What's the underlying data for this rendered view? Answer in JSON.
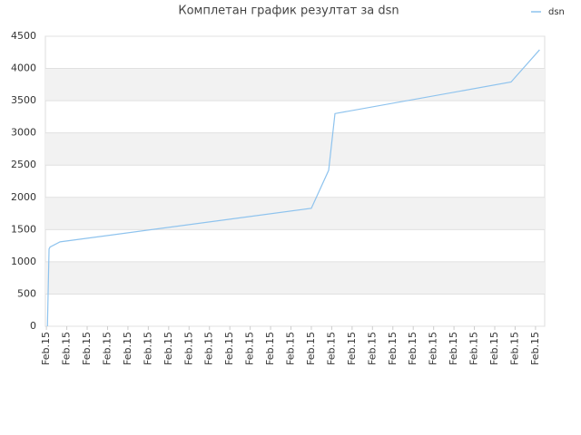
{
  "chart_data": {
    "type": "line",
    "title": "Комплетан график резултат за dsn",
    "x": [
      0.05,
      0.07,
      0.11,
      0.13,
      0.18,
      0.67,
      13.0,
      13.85,
      14.16,
      22.8,
      24.2
    ],
    "series": [
      {
        "name": "dsn",
        "color": "#8ec3ee",
        "values": [
          0,
          300,
          900,
          1200,
          1230,
          1310,
          1830,
          2420,
          3300,
          3790,
          4290
        ]
      }
    ],
    "xlim": [
      -0.05,
      24.45
    ],
    "xticks": [
      {
        "value": 0,
        "label": "Feb.15"
      },
      {
        "value": 1,
        "label": "Feb.15"
      },
      {
        "value": 2,
        "label": "Feb.15"
      },
      {
        "value": 3,
        "label": "Feb.15"
      },
      {
        "value": 4,
        "label": "Feb.15"
      },
      {
        "value": 5,
        "label": "Feb.15"
      },
      {
        "value": 6,
        "label": "Feb.15"
      },
      {
        "value": 7,
        "label": "Feb.15"
      },
      {
        "value": 8,
        "label": "Feb.15"
      },
      {
        "value": 9,
        "label": "Feb.15"
      },
      {
        "value": 10,
        "label": "Feb.15"
      },
      {
        "value": 11,
        "label": "Feb.15"
      },
      {
        "value": 12,
        "label": "Feb.15"
      },
      {
        "value": 13,
        "label": "Feb.15"
      },
      {
        "value": 14,
        "label": "Feb.15"
      },
      {
        "value": 15,
        "label": "Feb.15"
      },
      {
        "value": 16,
        "label": "Feb.15"
      },
      {
        "value": 17,
        "label": "Feb.15"
      },
      {
        "value": 18,
        "label": "Feb.15"
      },
      {
        "value": 19,
        "label": "Feb.15"
      },
      {
        "value": 20,
        "label": "Feb.15"
      },
      {
        "value": 21,
        "label": "Feb.15"
      },
      {
        "value": 22,
        "label": "Feb.15"
      },
      {
        "value": 23,
        "label": "Feb.15"
      },
      {
        "value": 24,
        "label": "Feb.15"
      }
    ],
    "ylim": [
      0,
      4500
    ],
    "yticks": [
      0,
      500,
      1000,
      1500,
      2000,
      2500,
      3000,
      3500,
      4000,
      4500
    ],
    "grid": true,
    "alternate_bands": true,
    "legend": "top-right"
  }
}
